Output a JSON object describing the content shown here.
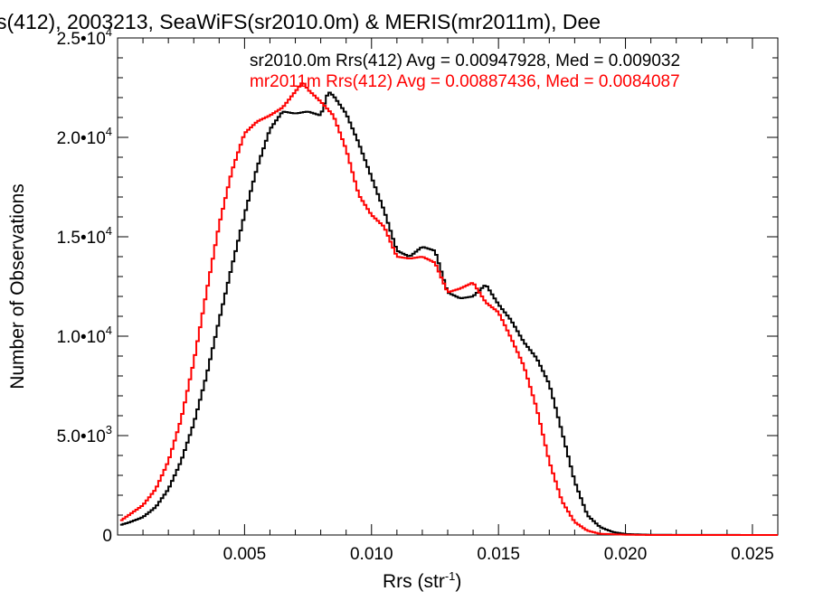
{
  "chart_data": {
    "type": "line",
    "title": "s(412), 2003213, SeaWiFS(sr2010.0m) & MERIS(mr2011m), Dee",
    "xlabel": "Rrs (str",
    "xlabel_sup": "-1",
    "xlabel_end": ")",
    "ylabel": "Number of Observations",
    "xlim": [
      0,
      0.026
    ],
    "ylim": [
      0,
      25000
    ],
    "grid": false,
    "legend_placement": "top-right",
    "x_ticks": [
      {
        "value": 0.005,
        "label": "0.005"
      },
      {
        "value": 0.01,
        "label": "0.010"
      },
      {
        "value": 0.015,
        "label": "0.015"
      },
      {
        "value": 0.02,
        "label": "0.020"
      },
      {
        "value": 0.025,
        "label": "0.025"
      }
    ],
    "y_ticks": [
      {
        "value": 0,
        "label": "0",
        "exp": ""
      },
      {
        "value": 5000,
        "label": "5.0•10",
        "exp": "3"
      },
      {
        "value": 10000,
        "label": "1.0•10",
        "exp": "4"
      },
      {
        "value": 15000,
        "label": "1.5•10",
        "exp": "4"
      },
      {
        "value": 20000,
        "label": "2.0•10",
        "exp": "4"
      },
      {
        "value": 25000,
        "label": "2.5•10",
        "exp": "4"
      }
    ],
    "series": [
      {
        "name": "sr2010.0m Rrs(412) Avg = 0.00947928, Med = 0.009032",
        "color": "#000000",
        "points": [
          [
            0.0001,
            500
          ],
          [
            0.0005,
            650
          ],
          [
            0.001,
            900
          ],
          [
            0.0015,
            1400
          ],
          [
            0.002,
            2300
          ],
          [
            0.0025,
            3700
          ],
          [
            0.003,
            5600
          ],
          [
            0.0035,
            8000
          ],
          [
            0.004,
            10800
          ],
          [
            0.0045,
            13500
          ],
          [
            0.005,
            16100
          ],
          [
            0.0055,
            18500
          ],
          [
            0.006,
            20400
          ],
          [
            0.0065,
            21300
          ],
          [
            0.007,
            21200
          ],
          [
            0.0075,
            21300
          ],
          [
            0.008,
            21100
          ],
          [
            0.0083,
            22300
          ],
          [
            0.0085,
            22100
          ],
          [
            0.009,
            21200
          ],
          [
            0.0095,
            19700
          ],
          [
            0.01,
            18000
          ],
          [
            0.0105,
            16300
          ],
          [
            0.011,
            14300
          ],
          [
            0.0115,
            14000
          ],
          [
            0.012,
            14500
          ],
          [
            0.0125,
            14300
          ],
          [
            0.013,
            12200
          ],
          [
            0.0135,
            11900
          ],
          [
            0.014,
            12000
          ],
          [
            0.0145,
            12600
          ],
          [
            0.015,
            11600
          ],
          [
            0.0155,
            10800
          ],
          [
            0.016,
            9700
          ],
          [
            0.0165,
            8900
          ],
          [
            0.017,
            7600
          ],
          [
            0.0175,
            5200
          ],
          [
            0.018,
            2700
          ],
          [
            0.0185,
            1000
          ],
          [
            0.019,
            400
          ],
          [
            0.0195,
            150
          ],
          [
            0.02,
            50
          ],
          [
            0.021,
            10
          ],
          [
            0.026,
            0
          ]
        ]
      },
      {
        "name": "mr2011m Rrs(412) Avg = 0.00887436, Med = 0.0084087",
        "color": "#ff0000",
        "points": [
          [
            0.0001,
            700
          ],
          [
            0.0005,
            1050
          ],
          [
            0.001,
            1500
          ],
          [
            0.0015,
            2300
          ],
          [
            0.002,
            3700
          ],
          [
            0.0025,
            5800
          ],
          [
            0.003,
            8700
          ],
          [
            0.0035,
            12200
          ],
          [
            0.004,
            15600
          ],
          [
            0.0045,
            18300
          ],
          [
            0.005,
            20200
          ],
          [
            0.0055,
            20800
          ],
          [
            0.006,
            21100
          ],
          [
            0.0065,
            21500
          ],
          [
            0.007,
            22300
          ],
          [
            0.0073,
            22800
          ],
          [
            0.0075,
            22400
          ],
          [
            0.008,
            21800
          ],
          [
            0.0085,
            21100
          ],
          [
            0.009,
            19400
          ],
          [
            0.0095,
            17100
          ],
          [
            0.01,
            16100
          ],
          [
            0.0105,
            15500
          ],
          [
            0.011,
            14000
          ],
          [
            0.0115,
            13900
          ],
          [
            0.012,
            14000
          ],
          [
            0.0125,
            13700
          ],
          [
            0.013,
            12200
          ],
          [
            0.0135,
            12400
          ],
          [
            0.014,
            12700
          ],
          [
            0.0145,
            11700
          ],
          [
            0.015,
            11200
          ],
          [
            0.0155,
            9900
          ],
          [
            0.016,
            8500
          ],
          [
            0.0165,
            6400
          ],
          [
            0.017,
            3700
          ],
          [
            0.0175,
            1700
          ],
          [
            0.018,
            650
          ],
          [
            0.0185,
            220
          ],
          [
            0.019,
            60
          ],
          [
            0.02,
            15
          ],
          [
            0.021,
            0
          ],
          [
            0.026,
            0
          ]
        ]
      }
    ]
  }
}
